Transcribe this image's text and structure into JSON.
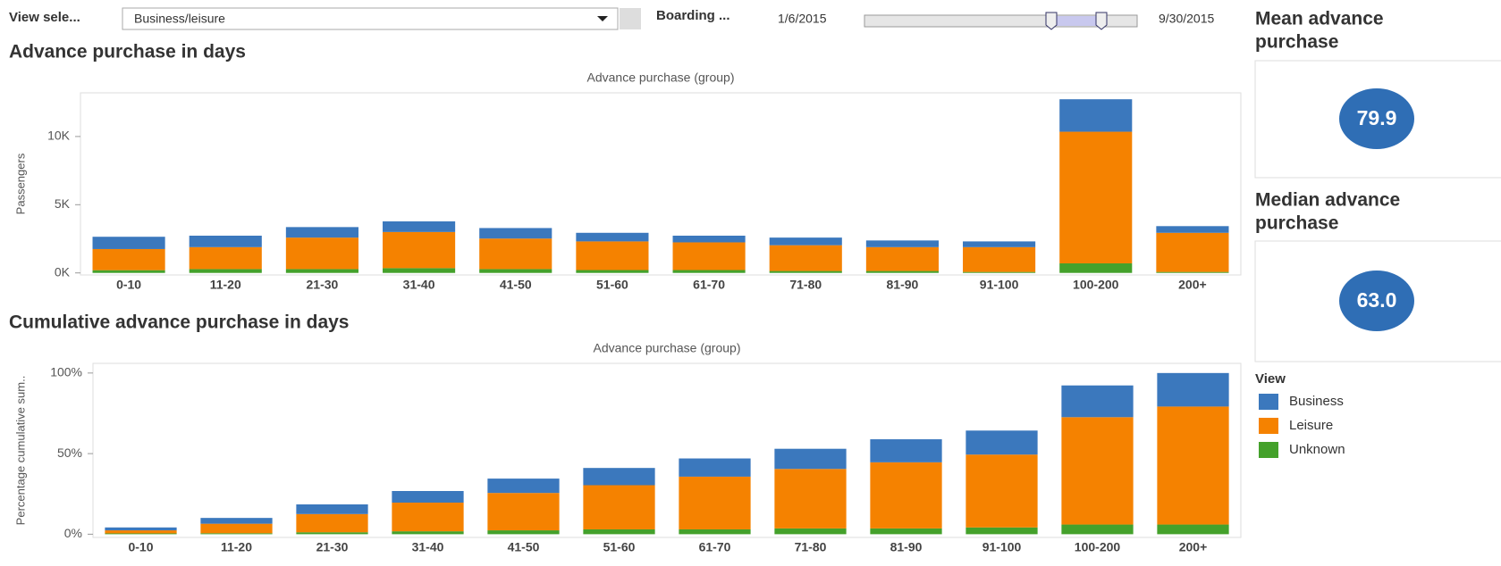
{
  "controls": {
    "view_label": "View sele...",
    "view_value": "Business/leisure",
    "boarding_label": "Boarding ...",
    "date_start": "1/6/2015",
    "date_end": "9/30/2015"
  },
  "kpis": [
    {
      "title_lines": [
        "Mean advance",
        "purchase"
      ],
      "value": "79.9"
    },
    {
      "title_lines": [
        "Median advance",
        "purchase"
      ],
      "value": "63.0"
    }
  ],
  "legend": {
    "title": "View"
  },
  "chart_data": [
    {
      "type": "bar",
      "stacked": true,
      "title": "Advance purchase in days",
      "x_label": "Advance purchase (group)",
      "y_label": "Passengers",
      "categories": [
        "0-10",
        "11-20",
        "21-30",
        "31-40",
        "41-50",
        "51-60",
        "61-70",
        "71-80",
        "81-90",
        "91-100",
        "100-200",
        "200+"
      ],
      "series": [
        {
          "name": "Business",
          "color": "#3b78bd",
          "values": [
            900,
            840,
            770,
            780,
            770,
            630,
            490,
            560,
            490,
            420,
            2380,
            490
          ]
        },
        {
          "name": "Leisure",
          "color": "#f58200",
          "values": [
            1550,
            1610,
            2310,
            2650,
            2240,
            2100,
            2030,
            1890,
            1750,
            1820,
            9650,
            2870
          ]
        },
        {
          "name": "Unknown",
          "color": "#44a12b",
          "values": [
            200,
            280,
            280,
            350,
            280,
            210,
            210,
            140,
            140,
            70,
            700,
            70
          ]
        }
      ],
      "ylim": [
        -150,
        13200
      ],
      "yticks": [
        {
          "value": 0,
          "label": "0K"
        },
        {
          "value": 5000,
          "label": "5K"
        },
        {
          "value": 10000,
          "label": "10K"
        }
      ]
    },
    {
      "type": "bar",
      "stacked": true,
      "title": "Cumulative advance purchase in days",
      "x_label": "Advance purchase (group)",
      "y_label": "Percentage cumulative sum..",
      "categories": [
        "0-10",
        "11-20",
        "21-30",
        "31-40",
        "41-50",
        "51-60",
        "61-70",
        "71-80",
        "81-90",
        "91-100",
        "100-200",
        "200+"
      ],
      "series": [
        {
          "name": "Business",
          "color": "#3b78bd",
          "values": [
            1.8,
            3.6,
            6.0,
            7.2,
            8.9,
            10.7,
            11.3,
            12.5,
            14.3,
            14.9,
            19.7,
            20.8
          ]
        },
        {
          "name": "Leisure",
          "color": "#f58200",
          "values": [
            1.9,
            5.9,
            11.3,
            17.8,
            23.2,
            27.4,
            32.7,
            36.9,
            41.0,
            45.2,
            66.6,
            73.2
          ]
        },
        {
          "name": "Unknown",
          "color": "#44a12b",
          "values": [
            0.5,
            0.6,
            1.2,
            1.8,
            2.4,
            3.0,
            3.0,
            3.6,
            3.6,
            4.2,
            6.0,
            6.0
          ]
        }
      ],
      "ylim": [
        -2,
        106
      ],
      "yticks": [
        {
          "value": 0,
          "label": "0%"
        },
        {
          "value": 50,
          "label": "50%"
        },
        {
          "value": 100,
          "label": "100%"
        }
      ]
    }
  ]
}
